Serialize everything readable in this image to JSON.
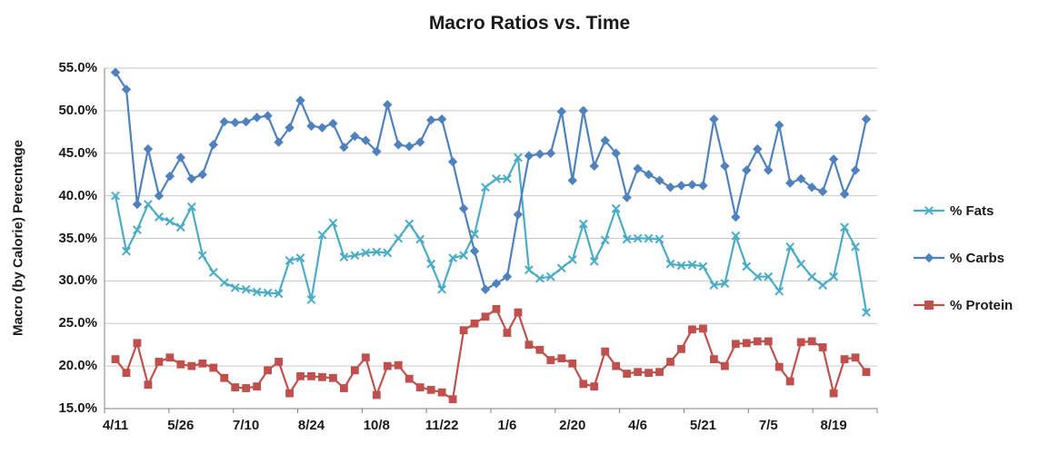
{
  "colors": {
    "background": "#FFFFFF",
    "grid": "#C9C9C9",
    "axis": "#808080",
    "text": "#1A1A1A",
    "fats": "#4BACC6",
    "carbs": "#4F81BD",
    "protein": "#C0504D"
  },
  "chart_data": {
    "type": "line",
    "title": "Macro Ratios vs. Time",
    "xlabel": "",
    "ylabel": "Macro (by Calorie) Perecntage",
    "ylim": [
      15,
      55
    ],
    "ytick_step": 5,
    "grid": true,
    "legend_position": "right",
    "y_tick_labels": [
      "55.0%",
      "50.0%",
      "45.0%",
      "40.0%",
      "35.0%",
      "30.0%",
      "25.0%",
      "20.0%",
      "15.0%"
    ],
    "x_tick_labels": [
      "4/11",
      "5/26",
      "7/10",
      "8/24",
      "10/8",
      "11/22",
      "1/6",
      "2/20",
      "4/6",
      "5/21",
      "7/5",
      "8/19"
    ],
    "x_tick_every": 6,
    "series": [
      {
        "name": "% Fats",
        "color": "#4BACC6",
        "marker": "x",
        "values": [
          40.0,
          33.5,
          36.0,
          39.0,
          37.5,
          37.0,
          36.3,
          38.7,
          33.0,
          31.0,
          29.8,
          29.2,
          29.0,
          28.7,
          28.6,
          28.5,
          32.4,
          32.7,
          27.8,
          35.4,
          36.8,
          32.8,
          33.0,
          33.3,
          33.4,
          33.3,
          35.0,
          36.7,
          34.9,
          32.0,
          29.0,
          32.7,
          33.0,
          35.5,
          41.0,
          42.0,
          42.0,
          44.5,
          31.3,
          30.3,
          30.5,
          31.5,
          32.5,
          36.7,
          32.3,
          34.8,
          38.5,
          34.9,
          35.0,
          35.0,
          34.9,
          32.0,
          31.8,
          31.9,
          31.7,
          29.5,
          29.7,
          35.3,
          31.7,
          30.5,
          30.5,
          28.8,
          34.0,
          32.0,
          30.5,
          29.5,
          30.5,
          36.3,
          34.0,
          26.3
        ]
      },
      {
        "name": "% Carbs",
        "color": "#4F81BD",
        "marker": "diamond",
        "values": [
          54.5,
          52.5,
          39.0,
          45.5,
          40.0,
          42.3,
          44.5,
          42.0,
          42.5,
          46.0,
          48.7,
          48.6,
          48.7,
          49.2,
          49.4,
          46.3,
          48.0,
          51.2,
          48.2,
          48.0,
          48.5,
          45.7,
          47.0,
          46.5,
          45.2,
          50.7,
          46.0,
          45.8,
          46.3,
          48.9,
          49.0,
          44.0,
          38.5,
          33.5,
          29.0,
          29.7,
          30.5,
          37.8,
          44.7,
          44.9,
          45.0,
          49.9,
          41.8,
          50.0,
          43.5,
          46.5,
          45.0,
          39.8,
          43.2,
          42.5,
          41.8,
          41.0,
          41.2,
          41.3,
          41.2,
          49.0,
          43.5,
          37.5,
          43.0,
          45.5,
          43.0,
          48.3,
          41.5,
          42.0,
          41.0,
          40.5,
          44.3,
          40.2,
          43.0,
          49.0
        ]
      },
      {
        "name": "% Protein",
        "color": "#C0504D",
        "marker": "square",
        "values": [
          20.8,
          19.2,
          22.7,
          17.8,
          20.5,
          21.0,
          20.2,
          20.0,
          20.3,
          19.8,
          18.6,
          17.5,
          17.4,
          17.6,
          19.5,
          20.5,
          16.8,
          18.8,
          18.8,
          18.7,
          18.6,
          17.4,
          19.5,
          21.0,
          16.6,
          20.0,
          20.1,
          18.5,
          17.5,
          17.2,
          16.9,
          16.1,
          24.2,
          25.0,
          25.8,
          26.7,
          23.9,
          26.3,
          22.5,
          21.9,
          20.7,
          20.9,
          20.3,
          17.9,
          17.6,
          21.7,
          20.0,
          19.1,
          19.3,
          19.2,
          19.3,
          20.5,
          22.0,
          24.3,
          24.4,
          20.8,
          20.0,
          22.6,
          22.7,
          22.9,
          22.9,
          19.9,
          18.2,
          22.8,
          22.9,
          22.2,
          16.8,
          20.8,
          21.0,
          19.3
        ]
      }
    ]
  }
}
